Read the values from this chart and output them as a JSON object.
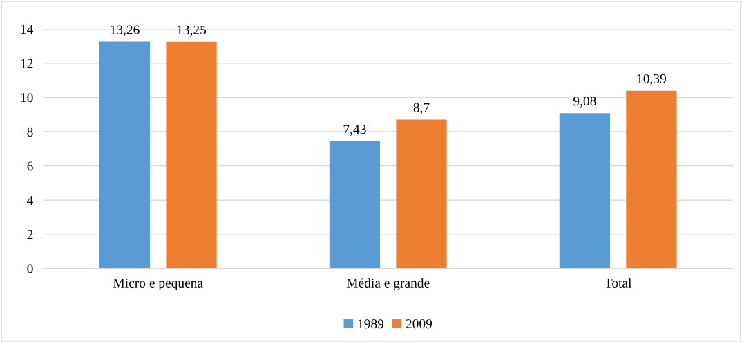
{
  "chart_data": {
    "type": "bar",
    "categories": [
      "Micro e pequena",
      "Média e grande",
      "Total"
    ],
    "series": [
      {
        "name": "1989",
        "color": "#5b9bd5",
        "values": [
          13.26,
          7.43,
          9.08
        ],
        "value_labels": [
          "13,26",
          "7,43",
          "9,08"
        ]
      },
      {
        "name": "2009",
        "color": "#ed7d31",
        "values": [
          13.25,
          8.7,
          10.39
        ],
        "value_labels": [
          "13,25",
          "8,7",
          "10,39"
        ]
      }
    ],
    "ylim": [
      0,
      14
    ],
    "yticks": [
      0,
      2,
      4,
      6,
      8,
      10,
      12,
      14
    ],
    "grid": "y",
    "legend": "bottom"
  }
}
